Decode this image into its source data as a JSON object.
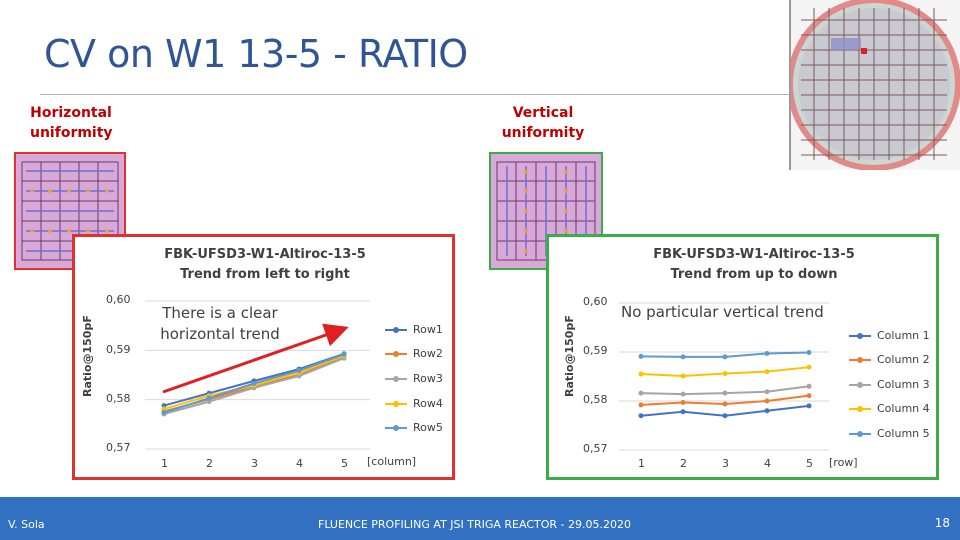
{
  "slide": {
    "title": "CV on W1 13-5 - RATIO",
    "slide_number": "18",
    "author": "V. Sola",
    "footer_text": "FLUENCE PROFILING AT JSI TRIGA REACTOR - 29.05.2020"
  },
  "left": {
    "section_label_line1": "Horizontal",
    "section_label_line2": "uniformity",
    "annotation_line1": "There is a clear",
    "annotation_line2": "horizontal trend",
    "frame_color": "#e03030"
  },
  "right": {
    "section_label_line1": "Vertical",
    "section_label_line2": "uniformity",
    "annotation": "No particular vertical trend",
    "frame_color": "#3cac48"
  },
  "chart_data": [
    {
      "type": "line",
      "title": "FBK-UFSD3-W1-Altiroc-13-5",
      "subtitle": "Trend from left to right",
      "ylabel": "Ratio@150pF",
      "xlabel": "[column]",
      "categories": [
        "1",
        "2",
        "3",
        "4",
        "5"
      ],
      "ylim": [
        0.57,
        0.6
      ],
      "yticks": [
        "0,60",
        "0,59",
        "0,58",
        "0,57"
      ],
      "legend_position": "right",
      "series": [
        {
          "name": "Row1",
          "color": "#4472c4",
          "values": [
            0.5788,
            0.5813,
            0.5838,
            0.5862,
            0.5893
          ]
        },
        {
          "name": "Row2",
          "color": "#ed7d31",
          "values": [
            0.5776,
            0.5801,
            0.5827,
            0.585,
            0.5887
          ]
        },
        {
          "name": "Row3",
          "color": "#a5a5a5",
          "values": [
            0.5771,
            0.5796,
            0.5824,
            0.5848,
            0.5884
          ]
        },
        {
          "name": "Row4",
          "color": "#ffc000",
          "values": [
            0.5781,
            0.5808,
            0.5829,
            0.5855,
            0.5889
          ]
        },
        {
          "name": "Row5",
          "color": "#5b9bd5",
          "values": [
            0.5774,
            0.5803,
            0.5833,
            0.5859,
            0.5892
          ]
        }
      ]
    },
    {
      "type": "line",
      "title": "FBK-UFSD3-W1-Altiroc-13-5",
      "subtitle": "Trend from up to down",
      "ylabel": "Ratio@150pF",
      "xlabel": "[row]",
      "categories": [
        "1",
        "2",
        "3",
        "4",
        "5"
      ],
      "ylim": [
        0.57,
        0.6
      ],
      "yticks": [
        "0,60",
        "0,59",
        "0,58",
        "0,57"
      ],
      "legend_position": "right",
      "series": [
        {
          "name": "Column 1",
          "color": "#4472c4",
          "values": [
            0.577,
            0.5778,
            0.577,
            0.578,
            0.579
          ]
        },
        {
          "name": "Column 2",
          "color": "#ed7d31",
          "values": [
            0.5792,
            0.5797,
            0.5794,
            0.58,
            0.5811
          ]
        },
        {
          "name": "Column 3",
          "color": "#a5a5a5",
          "values": [
            0.5816,
            0.5814,
            0.5816,
            0.5819,
            0.583
          ]
        },
        {
          "name": "Column 4",
          "color": "#ffc000",
          "values": [
            0.5855,
            0.5851,
            0.5856,
            0.586,
            0.5869
          ]
        },
        {
          "name": "Column 5",
          "color": "#5b9bd5",
          "values": [
            0.5891,
            0.589,
            0.589,
            0.5897,
            0.5899
          ]
        }
      ]
    }
  ]
}
